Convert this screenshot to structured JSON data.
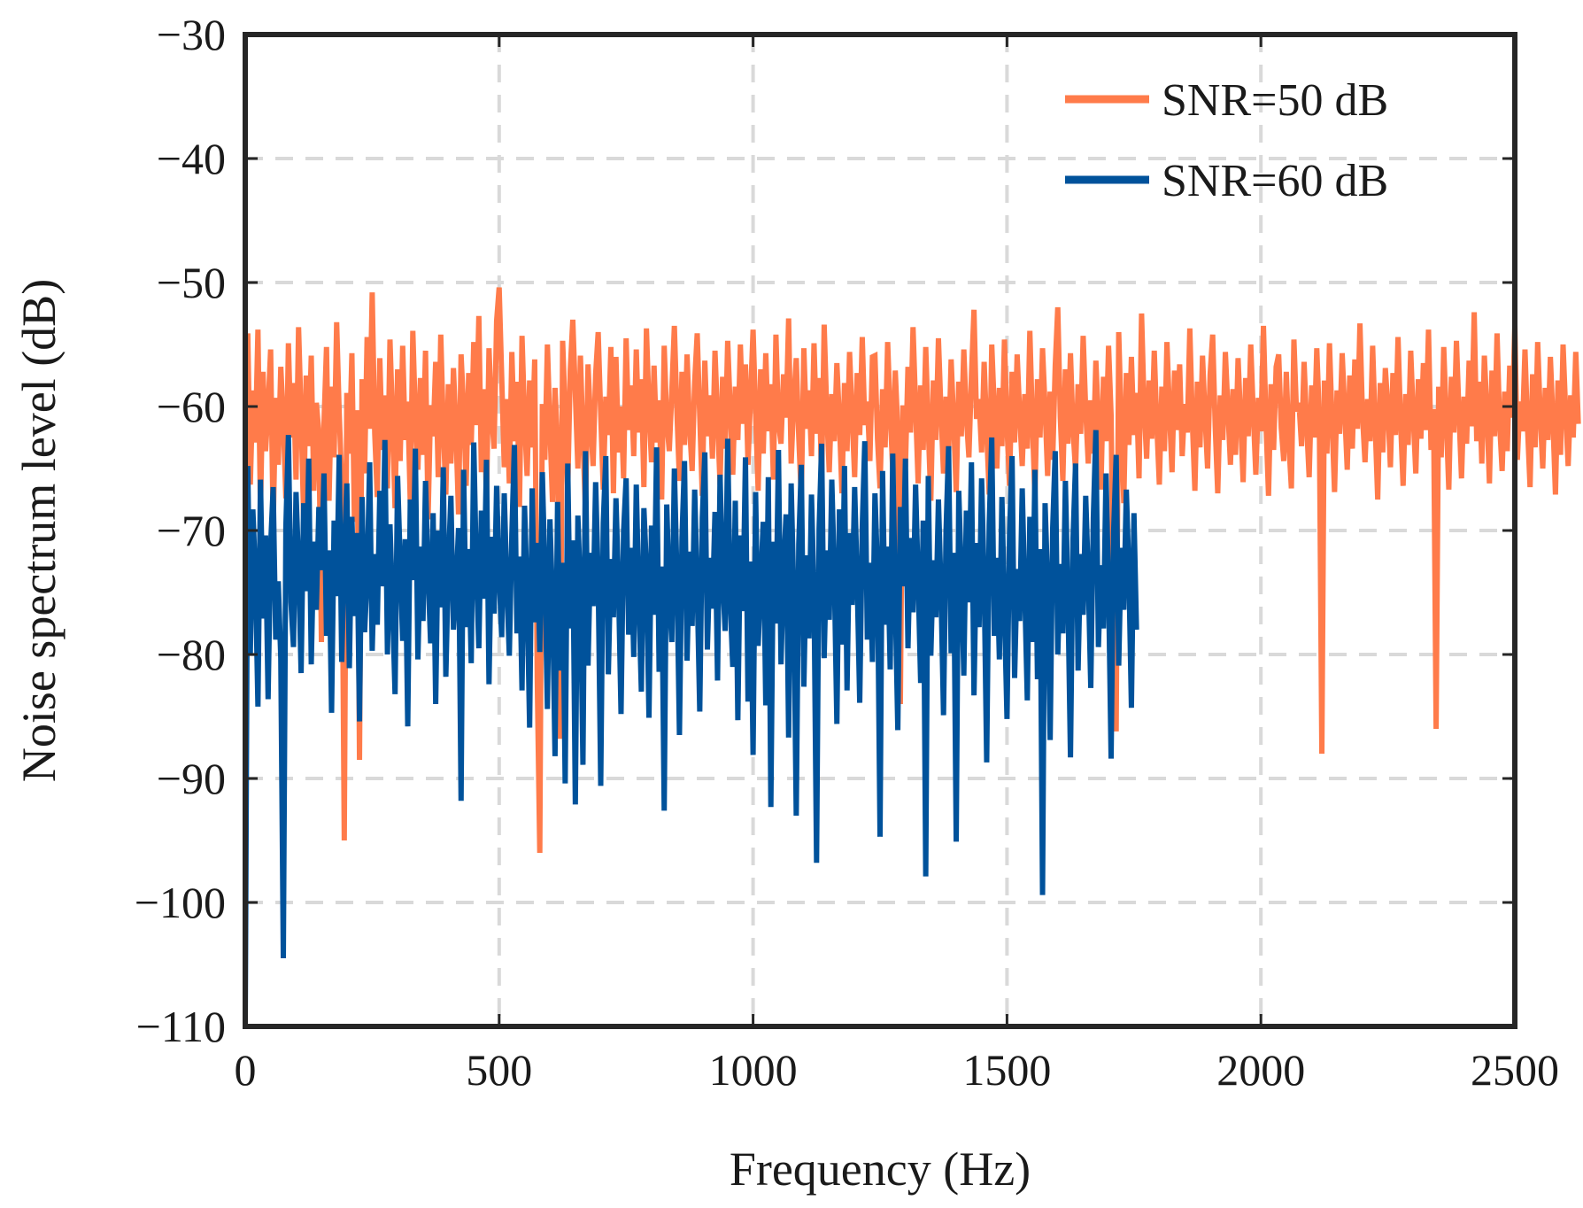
{
  "chart_data": {
    "type": "line",
    "xlabel": "Frequency (Hz)",
    "ylabel": "Noise spectrum level (dB)",
    "xlim": [
      0,
      2500
    ],
    "ylim": [
      -110,
      -30
    ],
    "grid": true,
    "legend_position": "top-right",
    "xticks": [
      {
        "value": 0,
        "label": "0"
      },
      {
        "value": 500,
        "label": "500"
      },
      {
        "value": 1000,
        "label": "1000"
      },
      {
        "value": 1500,
        "label": "1500"
      },
      {
        "value": 2000,
        "label": "2000"
      },
      {
        "value": 2500,
        "label": "2500"
      }
    ],
    "yticks": [
      {
        "value": -30,
        "label": "−30"
      },
      {
        "value": -40,
        "label": "−40"
      },
      {
        "value": -50,
        "label": "−50"
      },
      {
        "value": -60,
        "label": "−60"
      },
      {
        "value": -70,
        "label": "−70"
      },
      {
        "value": -80,
        "label": "−80"
      },
      {
        "value": -90,
        "label": "−90"
      },
      {
        "value": -100,
        "label": "−100"
      },
      {
        "value": -110,
        "label": "−110"
      }
    ],
    "series": [
      {
        "name": "SNR=50 dB",
        "color": "#FF7B4A",
        "x_step": 5,
        "values": [
          -70.2,
          -54.1,
          -66.3,
          -58.7,
          -62.9,
          -53.8,
          -68.5,
          -57.2,
          -63.6,
          -60.1,
          -55.4,
          -69.8,
          -59.3,
          -64.7,
          -56.8,
          -61.2,
          -67.4,
          -54.9,
          -62.5,
          -58.1,
          -65.9,
          -53.6,
          -60.8,
          -68.9,
          -57.5,
          -63.2,
          -55.9,
          -66.8,
          -59.7,
          -62.1,
          -79.0,
          -61.4,
          -55.2,
          -67.6,
          -58.4,
          -64.1,
          -53.2,
          -60.5,
          -66.1,
          -95.0,
          -58.9,
          -63.8,
          -55.7,
          -69.3,
          -60.3,
          -88.5,
          -57.8,
          -65.4,
          -54.4,
          -61.8,
          -50.8,
          -62.2,
          -67.3,
          -56.1,
          -63.5,
          -59.1,
          -66.6,
          -54.6,
          -61.1,
          -68.2,
          -57.0,
          -64.4,
          -55.1,
          -62.7,
          -59.6,
          -67.8,
          -53.9,
          -60.9,
          -65.1,
          -57.7,
          -63.9,
          -55.5,
          -69.1,
          -59.9,
          -62.4,
          -56.4,
          -65.7,
          -54.2,
          -61.6,
          -67.1,
          -58.2,
          -64.6,
          -56.9,
          -62.0,
          -68.7,
          -55.8,
          -60.2,
          -66.4,
          -57.3,
          -63.1,
          -54.8,
          -61.5,
          -52.7,
          -65.3,
          -58.6,
          -67.9,
          -55.3,
          -60.6,
          -63.4,
          -53.1,
          -50.4,
          -57.6,
          -64.9,
          -59.4,
          -66.2,
          -55.6,
          -62.8,
          -58.0,
          -68.1,
          -54.3,
          -61.0,
          -65.6,
          -57.9,
          -63.3,
          -56.2,
          -82.0,
          -96.0,
          -59.8,
          -64.3,
          -55.0,
          -61.7,
          -67.7,
          -58.5,
          -63.0,
          -86.8,
          -54.7,
          -60.4,
          -66.9,
          -57.1,
          -53.0,
          -59.0,
          -65.0,
          -55.9,
          -62.6,
          -68.4,
          -56.6,
          -61.3,
          -64.8,
          -57.4,
          -54.0,
          -60.7,
          -66.7,
          -59.2,
          -62.3,
          -55.2,
          -67.0,
          -56.0,
          -63.7,
          -60.0,
          -65.8,
          -54.5,
          -61.9,
          -58.3,
          -64.0,
          -55.4,
          -62.1,
          -57.8,
          -66.5,
          -53.7,
          -60.1,
          -64.5,
          -56.7,
          -62.9,
          -59.5,
          -67.5,
          -55.1,
          -61.2,
          -63.6,
          -58.8,
          -53.5,
          -60.4,
          -66.0,
          -57.2,
          -63.1,
          -55.8,
          -61.6,
          -65.2,
          -58.0,
          -54.1,
          -60.8,
          -67.2,
          -56.3,
          -62.4,
          -59.1,
          -64.2,
          -55.5,
          -61.0,
          -66.3,
          -57.6,
          -63.4,
          -54.7,
          -60.2,
          -65.5,
          -58.4,
          -62.7,
          -55.0,
          -61.4,
          -56.6,
          -64.7,
          -59.3,
          -53.8,
          -60.6,
          -66.8,
          -57.0,
          -63.8,
          -55.7,
          -62.0,
          -58.2,
          -65.9,
          -54.2,
          -61.3,
          -63.0,
          -57.4,
          -60.9,
          -52.9,
          -64.6,
          -59.7,
          -56.1,
          -62.5,
          -67.4,
          -55.3,
          -61.8,
          -58.7,
          -64.0,
          -54.9,
          -62.2,
          -57.7,
          -66.1,
          -53.4,
          -60.3,
          -65.3,
          -59.0,
          -62.8,
          -56.5,
          -61.1,
          -67.0,
          -58.1,
          -63.6,
          -55.6,
          -60.7,
          -65.7,
          -57.3,
          -62.3,
          -54.4,
          -61.5,
          -59.6,
          -64.4,
          -56.0,
          -55.9,
          -62.6,
          -66.6,
          -58.6,
          -63.3,
          -54.8,
          -60.5,
          -65.1,
          -57.1,
          -61.9,
          -84.0,
          -59.9,
          -64.9,
          -56.8,
          -62.1,
          -53.6,
          -60.0,
          -66.2,
          -58.3,
          -63.5,
          -55.2,
          -61.7,
          -67.6,
          -57.9,
          -62.7,
          -54.5,
          -60.4,
          -65.4,
          -59.2,
          -63.9,
          -56.2,
          -61.2,
          -66.9,
          -58.0,
          -62.4,
          -55.4,
          -60.8,
          -64.1,
          -57.5,
          -52.2,
          -61.0,
          -59.4,
          -63.7,
          -56.4,
          -62.0,
          -67.1,
          -55.0,
          -60.2,
          -65.0,
          -58.5,
          -63.2,
          -54.6,
          -61.6,
          -66.4,
          -57.2,
          -62.9,
          -55.8,
          -60.6,
          -64.8,
          -59.0,
          -63.4,
          -53.9,
          -61.3,
          -67.3,
          -57.8,
          -62.5,
          -55.3,
          -60.1,
          -65.6,
          -58.8,
          -64.3,
          -56.7,
          -52.0,
          -60.9,
          -66.0,
          -57.0,
          -63.0,
          -55.7,
          -61.8,
          -65.2,
          -58.2,
          -62.2,
          -54.3,
          -60.3,
          -64.6,
          -59.5,
          -63.8,
          -56.3,
          -61.1,
          -66.7,
          -57.6,
          -62.8,
          -55.1,
          -60.7,
          -78.0,
          -86.2,
          -54.0,
          -61.4,
          -67.8,
          -57.3,
          -63.1,
          -56.0,
          -62.3,
          -58.9,
          -65.8,
          -52.5,
          -60.0,
          -64.2,
          -57.9,
          -62.6,
          -55.5,
          -61.5,
          -66.3,
          -58.4,
          -63.6,
          -54.8,
          -60.5,
          -65.3,
          -57.1,
          -61.9,
          -56.6,
          -64.0,
          -59.8,
          -62.1,
          -53.7,
          -61.2,
          -66.8,
          -58.0,
          -63.3,
          -55.9,
          -60.8,
          -65.0,
          -57.4,
          -54.2,
          -61.6,
          -67.0,
          -59.1,
          -62.7,
          -55.6,
          -60.2,
          -64.7,
          -58.6,
          -63.9,
          -56.1,
          -61.0,
          -66.1,
          -57.7,
          -62.4,
          -55.0,
          -60.6,
          -65.5,
          -59.3,
          -62.0,
          -53.5,
          -61.3,
          -67.2,
          -58.2,
          -63.5,
          -56.8,
          -55.8,
          -61.7,
          -64.4,
          -57.2,
          -62.9,
          -66.6,
          -54.6,
          -60.4,
          -59.7,
          -63.2,
          -56.4,
          -61.4,
          -65.7,
          -58.3,
          -62.5,
          -55.3,
          -60.9,
          -88.0,
          -57.9,
          -63.8,
          -54.9,
          -61.1,
          -66.9,
          -58.7,
          -62.2,
          -55.7,
          -60.3,
          -65.1,
          -57.5,
          -63.4,
          -56.2,
          -61.8,
          -53.3,
          -60.7,
          -64.5,
          -59.4,
          -62.8,
          -55.1,
          -61.5,
          -67.5,
          -58.1,
          -63.7,
          -56.9,
          -60.1,
          -64.9,
          -57.3,
          -62.3,
          -54.4,
          -61.2,
          -66.4,
          -59.0,
          -63.1,
          -55.5,
          -60.8,
          -65.4,
          -57.8,
          -62.6,
          -56.5,
          -61.9,
          -53.8,
          -63.5,
          -60.2,
          -86.0,
          -58.4,
          -64.1,
          -55.2,
          -61.0,
          -66.7,
          -57.6,
          -62.1,
          -54.7,
          -60.5,
          -65.8,
          -59.2,
          -63.0,
          -56.3,
          -61.6,
          -52.4,
          -62.8,
          -58.0,
          -64.6,
          -55.9,
          -60.4,
          -66.2,
          -57.1,
          -62.4,
          -54.1,
          -61.3,
          -65.2,
          -58.8,
          -63.6,
          -56.7,
          -60.9,
          -53.4,
          -64.3,
          -59.6,
          -62.0,
          -55.4,
          -61.7,
          -66.5,
          -57.4,
          -63.3,
          -54.8,
          -60.6,
          -65.0,
          -58.5,
          -62.7,
          -56.0,
          -61.1,
          -67.1,
          -57.9,
          -63.9,
          -55.0,
          -60.3,
          -64.8,
          -59.1,
          -62.5,
          -55.6,
          -61.4
        ]
      },
      {
        "name": "SNR=60 dB",
        "color": "#00529B",
        "x_step": 5,
        "values": [
          -110.0,
          -64.8,
          -79.9,
          -68.3,
          -73.6,
          -84.2,
          -65.9,
          -77.1,
          -70.4,
          -83.6,
          -71.2,
          -66.5,
          -78.8,
          -74.1,
          -80.3,
          -104.5,
          -69.7,
          -62.3,
          -75.8,
          -79.4,
          -66.9,
          -72.7,
          -81.5,
          -67.8,
          -74.9,
          -64.2,
          -80.8,
          -70.9,
          -76.4,
          -68.1,
          -73.2,
          -65.4,
          -78.5,
          -71.6,
          -84.7,
          -69.2,
          -75.3,
          -63.9,
          -80.6,
          -72.0,
          -66.2,
          -81.1,
          -68.9,
          -76.9,
          -70.2,
          -85.4,
          -67.3,
          -78.2,
          -73.8,
          -64.5,
          -79.7,
          -71.9,
          -77.6,
          -66.8,
          -74.5,
          -62.7,
          -80.0,
          -69.5,
          -75.9,
          -83.2,
          -65.6,
          -72.4,
          -78.9,
          -70.7,
          -85.8,
          -67.5,
          -74.0,
          -63.4,
          -80.4,
          -71.3,
          -77.3,
          -66.0,
          -73.4,
          -79.1,
          -68.6,
          -84.0,
          -70.0,
          -76.2,
          -64.9,
          -81.8,
          -72.8,
          -67.2,
          -78.0,
          -74.7,
          -69.8,
          -91.8,
          -65.1,
          -77.8,
          -71.5,
          -80.7,
          -62.9,
          -73.0,
          -79.5,
          -68.4,
          -75.5,
          -64.3,
          -82.4,
          -70.5,
          -76.7,
          -66.4,
          -73.7,
          -78.6,
          -67.0,
          -74.3,
          -80.1,
          -70.3,
          -63.1,
          -78.3,
          -72.1,
          -82.9,
          -68.0,
          -75.0,
          -85.9,
          -66.6,
          -77.4,
          -71.0,
          -79.8,
          -65.3,
          -73.3,
          -84.4,
          -69.1,
          -75.6,
          -88.2,
          -67.7,
          -81.3,
          -72.6,
          -90.4,
          -64.6,
          -77.9,
          -70.8,
          -92.1,
          -68.8,
          -74.8,
          -88.9,
          -63.6,
          -80.9,
          -71.8,
          -76.1,
          -66.1,
          -73.9,
          -90.6,
          -69.4,
          -64.0,
          -81.6,
          -72.3,
          -77.0,
          -67.4,
          -74.4,
          -84.8,
          -70.1,
          -65.8,
          -78.4,
          -71.4,
          -80.2,
          -66.3,
          -75.4,
          -83.0,
          -68.2,
          -73.1,
          -85.1,
          -69.6,
          -76.8,
          -63.3,
          -81.4,
          -72.9,
          -92.6,
          -67.9,
          -75.2,
          -79.0,
          -65.0,
          -73.5,
          -86.5,
          -70.6,
          -64.4,
          -80.5,
          -71.7,
          -77.7,
          -66.7,
          -74.6,
          -84.6,
          -69.0,
          -63.7,
          -79.6,
          -72.2,
          -76.3,
          -68.5,
          -82.1,
          -65.5,
          -73.8,
          -78.1,
          -62.6,
          -75.7,
          -81.0,
          -67.6,
          -85.3,
          -70.4,
          -76.5,
          -64.1,
          -83.8,
          -72.5,
          -88.1,
          -66.9,
          -79.3,
          -74.2,
          -69.3,
          -84.1,
          -65.7,
          -92.3,
          -70.9,
          -77.5,
          -63.5,
          -80.8,
          -73.0,
          -68.7,
          -86.7,
          -66.2,
          -74.9,
          -93.0,
          -71.1,
          -64.7,
          -82.6,
          -72.0,
          -78.7,
          -67.1,
          -75.1,
          -96.8,
          -69.9,
          -63.0,
          -80.3,
          -71.6,
          -77.2,
          -65.9,
          -73.6,
          -85.6,
          -68.3,
          -79.2,
          -64.8,
          -82.9,
          -70.2,
          -76.0,
          -66.5,
          -74.1,
          -83.9,
          -69.7,
          -62.8,
          -78.8,
          -72.6,
          -80.6,
          -67.0,
          -73.2,
          -94.7,
          -65.2,
          -77.6,
          -71.3,
          -81.2,
          -63.8,
          -75.6,
          -86.1,
          -68.1,
          -74.5,
          -64.2,
          -79.5,
          -70.6,
          -76.6,
          -66.3,
          -73.9,
          -82.3,
          -69.2,
          -97.9,
          -65.6,
          -80.1,
          -72.4,
          -77.0,
          -67.5,
          -74.7,
          -84.9,
          -70.0,
          -63.2,
          -79.9,
          -71.8,
          -95.1,
          -66.8,
          -73.5,
          -81.7,
          -68.4,
          -75.8,
          -64.5,
          -83.3,
          -71.0,
          -77.8,
          -65.8,
          -74.0,
          -88.7,
          -69.5,
          -62.5,
          -78.5,
          -72.2,
          -80.4,
          -67.3,
          -76.3,
          -85.2,
          -70.3,
          -64.0,
          -81.9,
          -73.1,
          -77.3,
          -66.6,
          -75.0,
          -83.7,
          -68.9,
          -79.0,
          -65.1,
          -82.0,
          -71.5,
          -99.4,
          -67.8,
          -74.3,
          -86.9,
          -69.8,
          -63.6,
          -80.0,
          -72.7,
          -78.3,
          -66.0,
          -75.3,
          -88.3,
          -70.7,
          -64.6,
          -81.3,
          -71.9,
          -76.8,
          -67.2,
          -73.7,
          -82.7,
          -69.0,
          -61.9,
          -79.4,
          -72.8,
          -77.9,
          -65.4,
          -74.6,
          -88.4,
          -70.1,
          -63.9,
          -80.9,
          -71.4,
          -76.4,
          -66.7,
          -73.3,
          -84.3,
          -68.6,
          -78.0
        ]
      }
    ]
  }
}
